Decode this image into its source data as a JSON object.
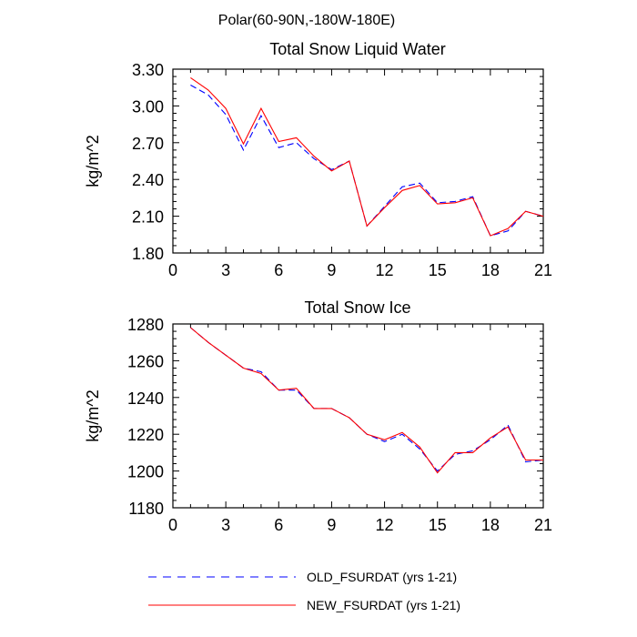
{
  "figure_title": "Polar(60-90N,-180W-180E)",
  "legend": {
    "items": [
      {
        "label": "OLD_FSURDAT (yrs 1-21)",
        "color": "#0000ff",
        "style": "dashed"
      },
      {
        "label": "NEW_FSURDAT (yrs 1-21)",
        "color": "#ff0000",
        "style": "solid"
      }
    ]
  },
  "chart_data": [
    {
      "type": "line",
      "title": "Total Snow Liquid Water",
      "xlabel": "",
      "ylabel": "kg/m^2",
      "xlim": [
        0,
        21
      ],
      "ylim": [
        1.8,
        3.3
      ],
      "xticks": [
        0,
        3,
        6,
        9,
        12,
        15,
        18,
        21
      ],
      "xtick_labels": [
        "0",
        "3",
        "6",
        "9",
        "12",
        "15",
        "18",
        "21"
      ],
      "yticks": [
        1.8,
        2.1,
        2.4,
        2.7,
        3.0,
        3.3
      ],
      "ytick_labels": [
        "1.80",
        "2.10",
        "2.40",
        "2.70",
        "3.00",
        "3.30"
      ],
      "x": [
        1,
        2,
        3,
        4,
        5,
        6,
        7,
        8,
        9,
        10,
        11,
        12,
        13,
        14,
        15,
        16,
        17,
        18,
        19,
        20,
        21
      ],
      "series": [
        {
          "name": "OLD_FSURDAT (yrs 1-21)",
          "color": "#0000ff",
          "style": "dashed",
          "values": [
            3.17,
            3.09,
            2.93,
            2.64,
            2.92,
            2.66,
            2.7,
            2.57,
            2.48,
            2.55,
            2.02,
            2.18,
            2.34,
            2.37,
            2.21,
            2.22,
            2.26,
            1.94,
            1.98,
            2.14,
            2.1
          ]
        },
        {
          "name": "NEW_FSURDAT (yrs 1-21)",
          "color": "#ff0000",
          "style": "solid",
          "values": [
            3.23,
            3.13,
            2.98,
            2.69,
            2.98,
            2.71,
            2.74,
            2.59,
            2.47,
            2.55,
            2.02,
            2.17,
            2.31,
            2.35,
            2.2,
            2.21,
            2.25,
            1.94,
            2.0,
            2.14,
            2.1
          ]
        }
      ]
    },
    {
      "type": "line",
      "title": "Total Snow Ice",
      "xlabel": "",
      "ylabel": "kg/m^2",
      "xlim": [
        0,
        21
      ],
      "ylim": [
        1180,
        1280
      ],
      "xticks": [
        0,
        3,
        6,
        9,
        12,
        15,
        18,
        21
      ],
      "xtick_labels": [
        "0",
        "3",
        "6",
        "9",
        "12",
        "15",
        "18",
        "21"
      ],
      "yticks": [
        1180,
        1200,
        1220,
        1240,
        1260,
        1280
      ],
      "ytick_labels": [
        "1180",
        "1200",
        "1220",
        "1240",
        "1260",
        "1280"
      ],
      "x": [
        1,
        2,
        3,
        4,
        5,
        6,
        7,
        8,
        9,
        10,
        11,
        12,
        13,
        14,
        15,
        16,
        17,
        18,
        19,
        20,
        21
      ],
      "series": [
        {
          "name": "OLD_FSURDAT (yrs 1-21)",
          "color": "#0000ff",
          "style": "dashed",
          "values": [
            1278,
            1270,
            1263,
            1256,
            1254,
            1244,
            1244,
            1234,
            1234,
            1229,
            1220,
            1216,
            1220,
            1212,
            1200,
            1209,
            1211,
            1217,
            1225,
            1205,
            1206
          ]
        },
        {
          "name": "NEW_FSURDAT (yrs 1-21)",
          "color": "#ff0000",
          "style": "solid",
          "values": [
            1278,
            1270,
            1263,
            1256,
            1253,
            1244,
            1245,
            1234,
            1234,
            1229,
            1220,
            1217,
            1221,
            1213,
            1199,
            1210,
            1210,
            1218,
            1224,
            1206,
            1206
          ]
        }
      ]
    }
  ]
}
